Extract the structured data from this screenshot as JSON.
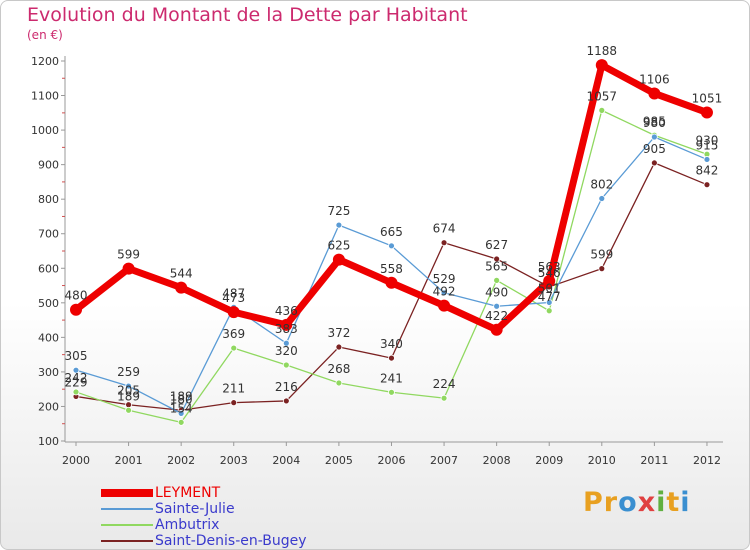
{
  "header": {
    "title": "Evolution du Montant de la Dette par Habitant",
    "unit": "(en €)"
  },
  "brand": {
    "letters": [
      "P",
      "r",
      "o",
      "x",
      "i",
      "t",
      "i"
    ],
    "colors": [
      "#e8a020",
      "#e8a020",
      "#3a8fd0",
      "#e04040",
      "#60b040",
      "#e8a020",
      "#3a8fd0"
    ]
  },
  "chart_data": {
    "type": "line",
    "title": "Evolution du Montant de la Dette par Habitant",
    "ylabel": "(en €)",
    "x": [
      "2000",
      "2001",
      "2002",
      "2003",
      "2004",
      "2005",
      "2006",
      "2007",
      "2008",
      "2009",
      "2010",
      "2011",
      "2012"
    ],
    "ylim": [
      100,
      1200
    ],
    "yticks": [
      100,
      200,
      300,
      400,
      500,
      600,
      700,
      800,
      900,
      1000,
      1100,
      1200
    ],
    "grid": false,
    "legend_position": "bottom-left",
    "series": [
      {
        "name": "LEYMENT",
        "color": "#ee0000",
        "values": [
          480,
          599,
          544,
          473,
          436,
          625,
          558,
          492,
          422,
          563,
          1188,
          1106,
          1051
        ]
      },
      {
        "name": "Sainte-Julie",
        "color": "#5a9bd5",
        "values": [
          305,
          259,
          180,
          487,
          383,
          725,
          665,
          529,
          490,
          501,
          802,
          980,
          915
        ]
      },
      {
        "name": "Ambutrix",
        "color": "#90d860",
        "values": [
          242,
          189,
          154,
          369,
          320,
          268,
          241,
          224,
          565,
          477,
          1057,
          985,
          930
        ]
      },
      {
        "name": "Saint-Denis-en-Bugey",
        "color": "#7b2222",
        "values": [
          229,
          205,
          189,
          211,
          216,
          372,
          340,
          674,
          627,
          546,
          599,
          905,
          842
        ]
      }
    ]
  }
}
